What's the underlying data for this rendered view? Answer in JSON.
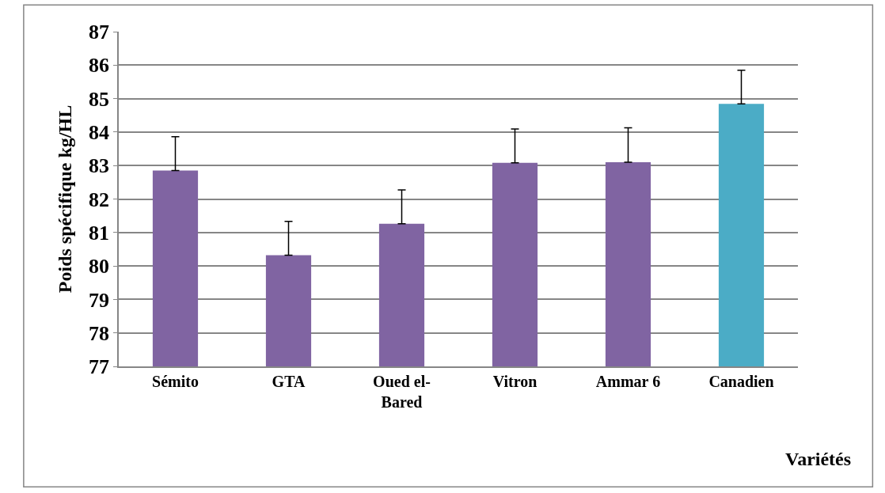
{
  "chart_data": {
    "type": "bar",
    "xlabel": "Variétés",
    "ylabel": "Poids spécifique kg/HL",
    "categories": [
      "Sémito",
      "GTA",
      "Oued el-\nBared",
      "Vitron",
      "Ammar 6",
      "Canadien"
    ],
    "values": [
      82.85,
      80.32,
      81.26,
      83.08,
      83.1,
      84.84
    ],
    "colors": [
      "#8064a2",
      "#8064a2",
      "#8064a2",
      "#8064a2",
      "#8064a2",
      "#4bacc6"
    ],
    "errors": [
      [
        82.85,
        83.86
      ],
      [
        80.32,
        81.33
      ],
      [
        81.26,
        82.27
      ],
      [
        83.08,
        84.09
      ],
      [
        83.1,
        84.13
      ],
      [
        84.84,
        85.85
      ]
    ],
    "ylim": [
      77,
      87
    ],
    "yticks": [
      77,
      78,
      79,
      80,
      81,
      82,
      83,
      84,
      85,
      86,
      87
    ],
    "grid": "y"
  }
}
